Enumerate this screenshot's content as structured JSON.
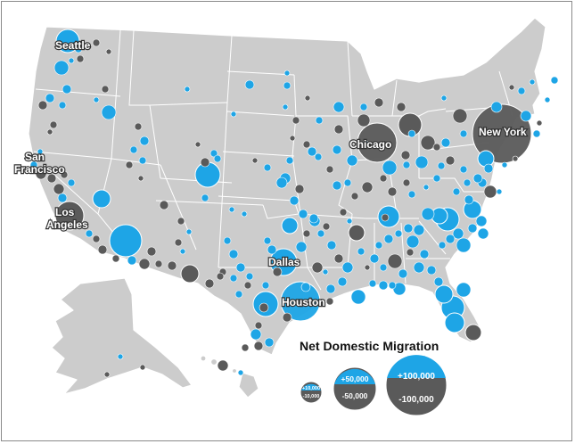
{
  "colors": {
    "gain": "#1ea5e6",
    "loss": "#5a5a5a",
    "land": "#cccccc",
    "border": "#ffffff"
  },
  "labels": {
    "seattle": "Seattle",
    "san_francisco_1": "San",
    "san_francisco_2": "Francisco",
    "los_angeles_1": "Los",
    "los_angeles_2": "Angeles",
    "chicago": "Chicago",
    "new_york": "New York",
    "dallas": "Dallas",
    "houston": "Houston"
  },
  "legend": {
    "title": "Net Domestic Migration",
    "small": {
      "plus": "+10,000",
      "minus": "-10,000"
    },
    "medium": {
      "plus": "+50,000",
      "minus": "-50,000"
    },
    "large": {
      "plus": "+100,000",
      "minus": "-100,000"
    }
  }
}
